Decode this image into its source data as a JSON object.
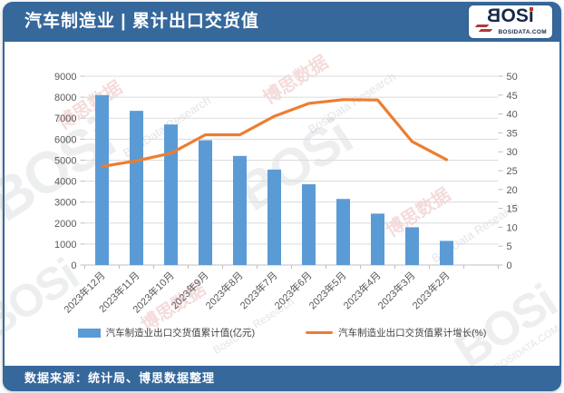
{
  "header": {
    "title": "汽车制造业 | 累计出口交货值"
  },
  "logo": {
    "text": "BOSi",
    "site": "BOSIDATA.COM"
  },
  "footer": {
    "source": "数据来源：统计局、博思数据整理"
  },
  "watermark": {
    "brand": "BOSi",
    "cn": "博思数据",
    "en": "BosiData Research",
    "site": "BOSIDATA.COM"
  },
  "colors": {
    "frame_blue": "#36689C",
    "bar_blue": "#5B9BD5",
    "line_orange": "#ED7D31",
    "grid": "#DCDCDC",
    "axis_line": "#BFBFBF",
    "axis_text": "#595959",
    "logo_navy": "#17294a",
    "logo_red": "#C0392B"
  },
  "chart_data": {
    "type": "bar",
    "subtype": "combo-bar-line-dual-axis",
    "title": "汽车制造业 | 累计出口交货值",
    "categories": [
      "2023年12月",
      "2023年11月",
      "2023年10月",
      "2023年9月",
      "2023年8月",
      "2023年7月",
      "2023年6月",
      "2023年5月",
      "2023年4月",
      "2023年3月",
      "2023年2月"
    ],
    "series": [
      {
        "name": "汽车制造业出口交货值累计值(亿元)",
        "type": "bar",
        "yaxis": "left",
        "color": "#5B9BD5",
        "values": [
          8100,
          7350,
          6700,
          5950,
          5200,
          4550,
          3850,
          3150,
          2450,
          1800,
          1150
        ]
      },
      {
        "name": "汽车制造业出口交货值累计增长(%)",
        "type": "line",
        "yaxis": "right",
        "color": "#ED7D31",
        "values": [
          26.1,
          27.6,
          29.6,
          34.5,
          34.5,
          39.4,
          42.8,
          43.8,
          43.7,
          32.7,
          27.9
        ]
      }
    ],
    "left_axis": {
      "min": 0,
      "max": 9000,
      "step": 1000
    },
    "right_axis": {
      "min": 0,
      "max": 50,
      "step": 5
    },
    "grid": true,
    "legend_position": "bottom",
    "x_tick_slots": 12
  }
}
